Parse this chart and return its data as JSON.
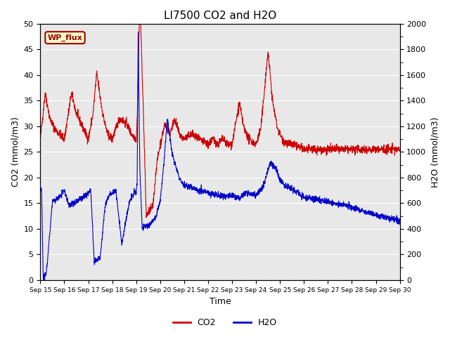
{
  "title": "LI7500 CO2 and H2O",
  "xlabel": "Time",
  "ylabel_left": "CO2 (mmol/m3)",
  "ylabel_right": "H2O (mmol/m3)",
  "co2_color": "#cc0000",
  "h2o_color": "#0000cc",
  "ylim_left": [
    0,
    50
  ],
  "ylim_right": [
    0,
    2000
  ],
  "background_color": "#e8e8e8",
  "grid_color": "#ffffff",
  "annotation_text": "WP_flux",
  "annotation_bg": "#ffffcc",
  "annotation_border": "#990000",
  "x_tick_labels": [
    "Sep 15",
    "Sep 16",
    "Sep 17",
    "Sep 18",
    "Sep 19",
    "Sep 20",
    "Sep 21",
    "Sep 22",
    "Sep 23",
    "Sep 24",
    "Sep 25",
    "Sep 26",
    "Sep 27",
    "Sep 28",
    "Sep 29",
    "Sep 30"
  ],
  "n_points": 2000,
  "fig_width": 6.4,
  "fig_height": 4.8,
  "dpi": 100
}
